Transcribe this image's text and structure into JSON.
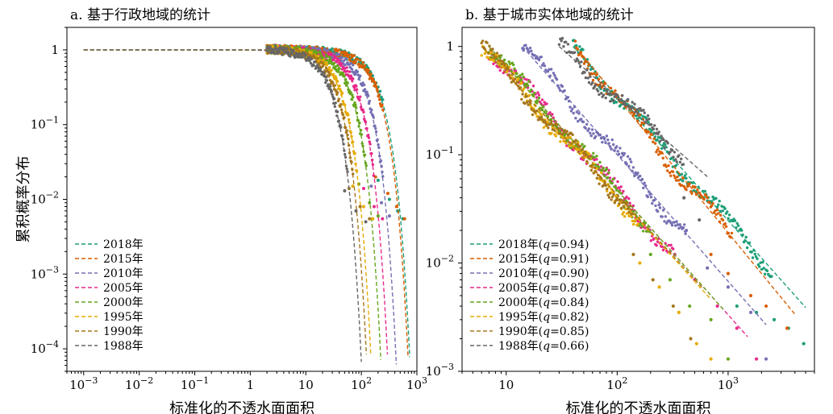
{
  "chart_data": [
    {
      "type": "scatter",
      "title": "a. 基于行政地域的统计",
      "xlabel": "标准化的不透水面面积",
      "ylabel": "累积概率分布",
      "xscale": "log",
      "yscale": "log",
      "xlim": [
        0.0005,
        1000
      ],
      "ylim": [
        5e-05,
        2
      ],
      "x_ticks": [
        {
          "v": 0.001,
          "label": "10",
          "exp": "−3"
        },
        {
          "v": 0.01,
          "label": "10",
          "exp": "−2"
        },
        {
          "v": 0.1,
          "label": "10",
          "exp": "−1"
        },
        {
          "v": 1,
          "label": "1",
          "exp": ""
        },
        {
          "v": 10,
          "label": "10",
          "exp": ""
        },
        {
          "v": 100,
          "label": "10",
          "exp": "2"
        },
        {
          "v": 1000,
          "label": "10",
          "exp": "3"
        }
      ],
      "y_ticks": [
        {
          "v": 1,
          "label": "1",
          "exp": ""
        },
        {
          "v": 0.1,
          "label": "10",
          "exp": "−1"
        },
        {
          "v": 0.01,
          "label": "10",
          "exp": "−2"
        },
        {
          "v": 0.001,
          "label": "10",
          "exp": "−3"
        },
        {
          "v": 0.0001,
          "label": "10",
          "exp": "−4"
        }
      ],
      "legend_position": "bottom-left",
      "series": [
        {
          "name": "2018年",
          "color": "#1b9e77",
          "x0": 3.0,
          "k": 300,
          "dot_x": [
            200,
            320,
            450,
            560
          ],
          "dot_y": [
            0.018,
            0.01,
            0.007,
            0.0055
          ]
        },
        {
          "name": "2015年",
          "color": "#d95f02",
          "x0": 2.8,
          "k": 280,
          "dot_x": [
            180,
            300,
            430,
            600
          ],
          "dot_y": [
            0.02,
            0.012,
            0.008,
            0.0055
          ]
        },
        {
          "name": "2010年",
          "color": "#7570b3",
          "x0": 2.2,
          "k": 170,
          "dot_x": [
            150,
            230,
            320
          ],
          "dot_y": [
            0.015,
            0.009,
            0.006
          ]
        },
        {
          "name": "2005年",
          "color": "#e7298a",
          "x0": 2.0,
          "k": 120,
          "dot_x": [
            110,
            170,
            240
          ],
          "dot_y": [
            0.014,
            0.008,
            0.0055
          ]
        },
        {
          "name": "2000年",
          "color": "#66a61e",
          "x0": 1.8,
          "k": 90,
          "dot_x": [
            90,
            140,
            200
          ],
          "dot_y": [
            0.016,
            0.009,
            0.006
          ]
        },
        {
          "name": "1995年",
          "color": "#e6ab02",
          "x0": 1.6,
          "k": 60,
          "dot_x": [
            70,
            110,
            160
          ],
          "dot_y": [
            0.015,
            0.008,
            0.0055
          ]
        },
        {
          "name": "1990年",
          "color": "#a6761d",
          "x0": 1.5,
          "k": 50,
          "dot_x": [
            60,
            95,
            140
          ],
          "dot_y": [
            0.014,
            0.008,
            0.0055
          ]
        },
        {
          "name": "1988年",
          "color": "#666666",
          "x0": 1.4,
          "k": 40,
          "dot_x": [
            50,
            80,
            120
          ],
          "dot_y": [
            0.013,
            0.007,
            0.005
          ]
        }
      ]
    },
    {
      "type": "scatter",
      "title": "b. 基于城市实体地域的统计",
      "xlabel": "标准化的不透水面面积",
      "ylabel": "",
      "xscale": "log",
      "yscale": "log",
      "xlim": [
        4,
        6000
      ],
      "ylim": [
        0.001,
        1.5
      ],
      "x_ticks": [
        {
          "v": 10,
          "label": "10",
          "exp": ""
        },
        {
          "v": 100,
          "label": "10",
          "exp": "2"
        },
        {
          "v": 1000,
          "label": "10",
          "exp": "3"
        }
      ],
      "y_ticks": [
        {
          "v": 1,
          "label": "1",
          "exp": ""
        },
        {
          "v": 0.1,
          "label": "10",
          "exp": "−1"
        },
        {
          "v": 0.01,
          "label": "10",
          "exp": "−2"
        },
        {
          "v": 0.001,
          "label": "10",
          "exp": "−3"
        }
      ],
      "legend_position": "bottom-left",
      "series": [
        {
          "name": "2018年(q=0.94)",
          "q": "0.94",
          "color": "#1b9e77",
          "xmin": 40,
          "xmax": 5000,
          "slope": -1.15,
          "emp_max": 2500,
          "tail_x": [
            1200,
            1800,
            2600,
            3500,
            4800
          ],
          "tail_y": [
            0.004,
            0.0035,
            0.003,
            0.0025,
            0.0018
          ]
        },
        {
          "name": "2015年(q=0.91)",
          "q": "0.91",
          "color": "#d95f02",
          "xmin": 42,
          "xmax": 4000,
          "slope": -1.25,
          "emp_max": 1100,
          "tail_x": [
            700,
            1000,
            1600,
            2200,
            3400
          ],
          "tail_y": [
            0.012,
            0.008,
            0.005,
            0.004,
            0.0025
          ]
        },
        {
          "name": "2010年(q=0.90)",
          "q": "0.90",
          "color": "#7570b3",
          "xmin": 14,
          "xmax": 2200,
          "slope": -1.17,
          "emp_max": 420,
          "tail_x": [
            420,
            650,
            1000,
            1600,
            2200
          ],
          "tail_y": [
            0.02,
            0.009,
            0.006,
            0.0035,
            0.0013
          ]
        },
        {
          "name": "2005年(q=0.87)",
          "q": "0.87",
          "color": "#e7298a",
          "xmin": 7,
          "xmax": 1500,
          "slope": -1.15,
          "emp_max": 320,
          "tail_x": [
            330,
            500,
            800,
            1200,
            1800
          ],
          "tail_y": [
            0.012,
            0.007,
            0.004,
            0.0025,
            0.0013
          ]
        },
        {
          "name": "2000年(q=0.84)",
          "q": "0.84",
          "color": "#66a61e",
          "xmin": 7,
          "xmax": 900,
          "slope": -1.15,
          "emp_max": 200,
          "tail_x": [
            200,
            300,
            450,
            700,
            1000
          ],
          "tail_y": [
            0.012,
            0.007,
            0.004,
            0.003,
            0.0013
          ]
        },
        {
          "name": "1995年(q=0.82)",
          "q": "0.82",
          "color": "#e6ab02",
          "xmin": 6,
          "xmax": 700,
          "slope": -1.13,
          "emp_max": 160,
          "tail_x": [
            160,
            240,
            360,
            520,
            700
          ],
          "tail_y": [
            0.01,
            0.006,
            0.0035,
            0.0018,
            0.0013
          ]
        },
        {
          "name": "1990年(q=0.85)",
          "q": "0.85",
          "color": "#a6761d",
          "xmin": 6,
          "xmax": 600,
          "slope": -1.12,
          "emp_max": 140,
          "tail_x": [
            140,
            210,
            320,
            460
          ],
          "tail_y": [
            0.012,
            0.007,
            0.004,
            0.002
          ]
        },
        {
          "name": "1988年(q=0.66)",
          "q": "0.66",
          "color": "#666666",
          "xmin": 30,
          "xmax": 650,
          "slope": -0.9,
          "emp_max": 400,
          "tail_x": [
            400,
            550
          ],
          "tail_y": [
            0.04,
            0.025
          ]
        }
      ]
    }
  ]
}
